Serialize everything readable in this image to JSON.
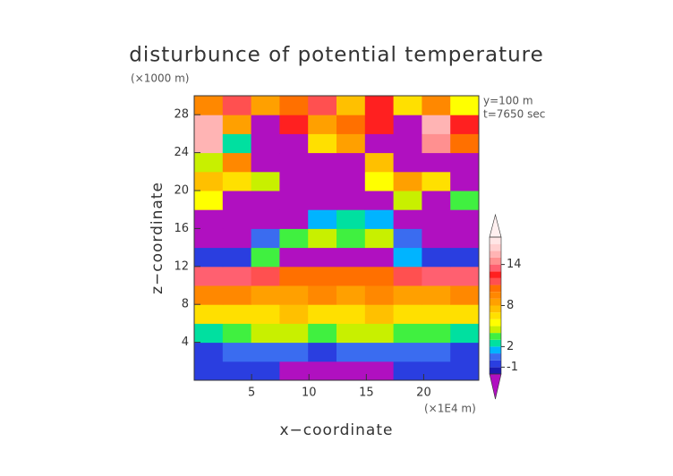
{
  "chart_data": {
    "type": "heatmap",
    "title": "disturbunce of potential temperature",
    "y_unit": "(×1000 m)",
    "x_unit": "(×1E4 m)",
    "xlabel": "x−coordinate",
    "ylabel": "z−coordinate",
    "annotations": [
      "y=100 m",
      "t=7650 sec"
    ],
    "xlim": [
      0,
      24.8
    ],
    "ylim": [
      0,
      30
    ],
    "xticks": [
      5,
      10,
      15,
      20
    ],
    "yticks": [
      4,
      8,
      12,
      16,
      20,
      24,
      28
    ],
    "z": [
      [
        -1,
        -1,
        -1,
        -3,
        -3,
        -3,
        -3,
        -1,
        -1,
        -1
      ],
      [
        -1,
        0,
        0,
        0,
        -1,
        0,
        0,
        0,
        0,
        -1
      ],
      [
        2,
        3,
        4,
        4,
        3,
        4,
        4,
        3,
        3,
        2
      ],
      [
        6,
        6,
        6,
        7,
        6,
        6,
        7,
        6,
        6,
        6
      ],
      [
        9,
        9,
        8,
        8,
        9,
        8,
        9,
        8,
        8,
        9
      ],
      [
        13,
        13,
        11,
        10,
        10,
        10,
        10,
        11,
        13,
        13
      ],
      [
        -1,
        -1,
        3,
        -3,
        -3,
        -3,
        -3,
        1,
        -1,
        -1
      ],
      [
        -3,
        -3,
        0,
        3,
        4,
        3,
        4,
        0,
        -3,
        -3
      ],
      [
        -3,
        -3,
        -3,
        -3,
        1,
        2,
        1,
        -3,
        -3,
        -3
      ],
      [
        5,
        -3,
        -3,
        -3,
        -3,
        -3,
        -3,
        4,
        -3,
        3
      ],
      [
        7,
        6,
        4,
        -3,
        -3,
        -3,
        5,
        8,
        6,
        -3
      ],
      [
        4,
        9,
        -3,
        -3,
        -3,
        -3,
        7,
        -3,
        -3,
        -3
      ],
      [
        15,
        2,
        -3,
        -3,
        6,
        8,
        -3,
        -3,
        14,
        10
      ],
      [
        15,
        8,
        -3,
        12,
        8,
        10,
        12,
        -3,
        15,
        12
      ],
      [
        9,
        11,
        8,
        10,
        11,
        7,
        12,
        6,
        9,
        5
      ]
    ],
    "colorbar": {
      "levels": [
        -2,
        -1,
        0,
        1,
        2,
        3,
        4,
        5,
        6,
        7,
        8,
        9,
        10,
        11,
        12,
        13,
        14,
        15,
        16,
        17,
        18
      ],
      "colors": [
        "#1a1ab0",
        "#2a3ee0",
        "#3a6cf0",
        "#00b4ff",
        "#00e0a0",
        "#40f040",
        "#c8f000",
        "#ffff00",
        "#ffe000",
        "#ffc000",
        "#ffa000",
        "#ff8800",
        "#ff7000",
        "#ff5050",
        "#ff2020",
        "#ff6070",
        "#ff9090",
        "#ffb4b4",
        "#ffd0d0",
        "#ffe6e6"
      ],
      "under_color": "#b010c0",
      "over_color": "#fff0f0",
      "ticks": [
        14,
        8,
        2,
        -1
      ]
    }
  }
}
